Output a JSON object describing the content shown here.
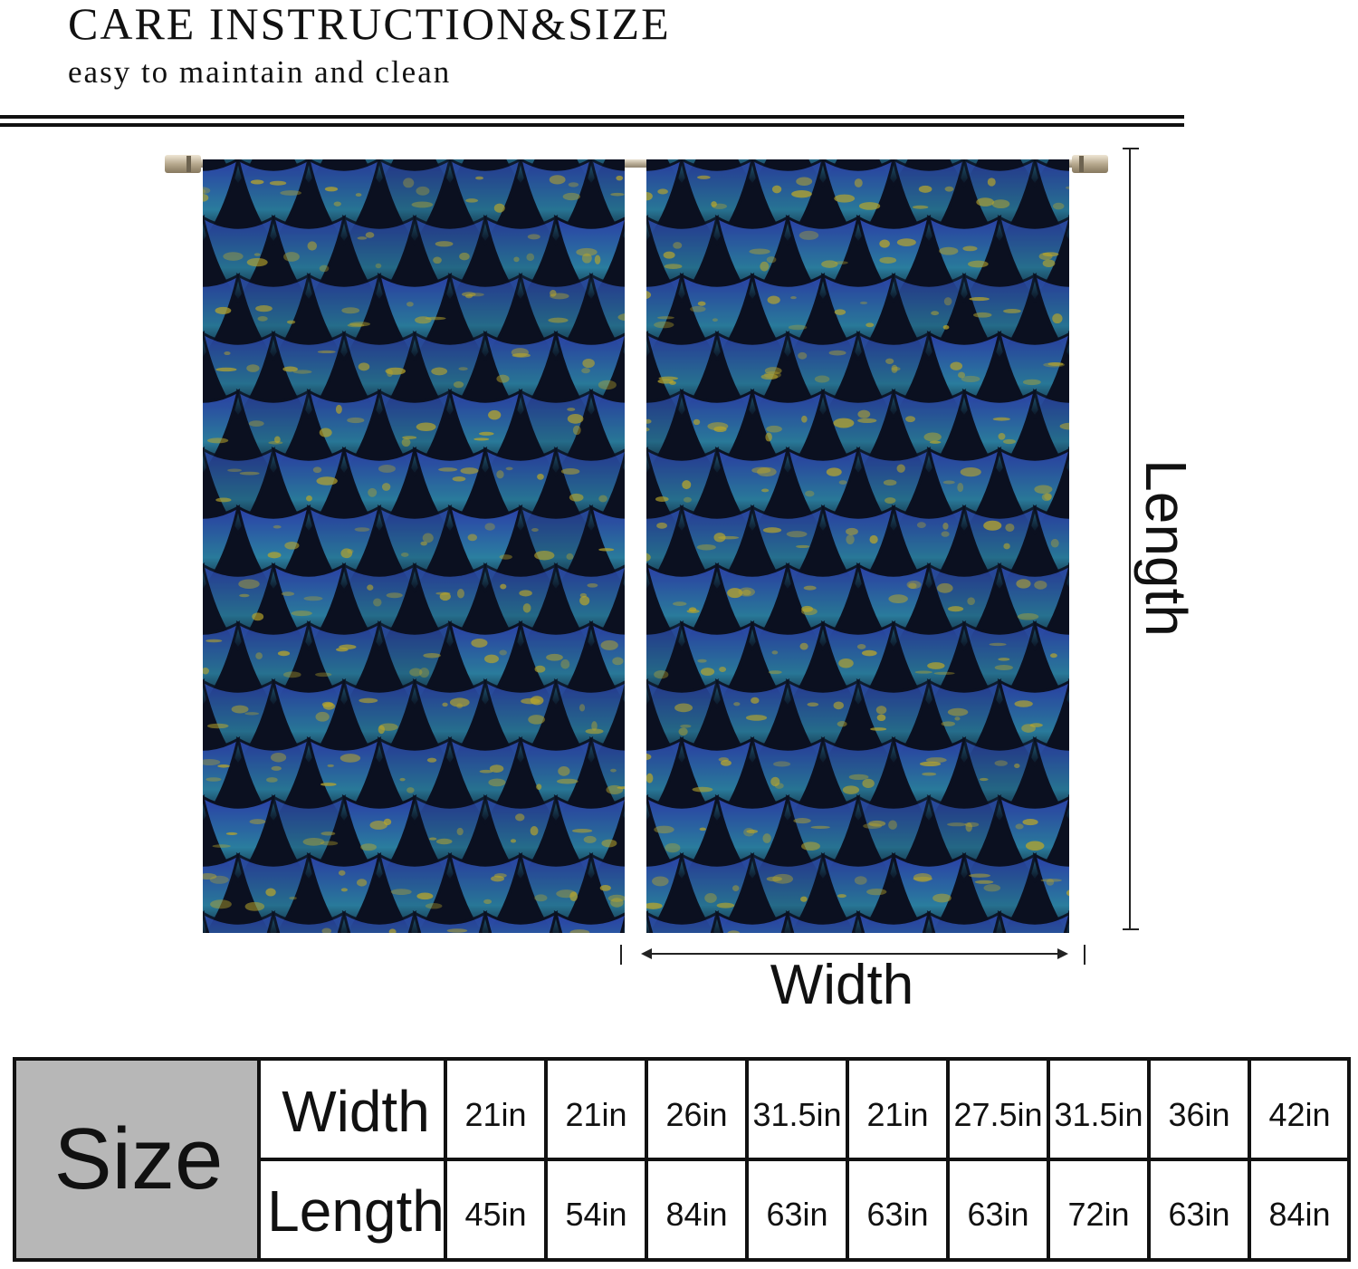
{
  "header": {
    "title": "CARE INSTRUCTION&SIZE",
    "subtitle": "easy to maintain and clean"
  },
  "dimensions": {
    "length_label": "Length",
    "width_label": "Width"
  },
  "size_table": {
    "header": "Size",
    "width_label": "Width",
    "length_label": "Length",
    "widths": [
      "21in",
      "21in",
      "26in",
      "31.5in",
      "21in",
      "27.5in",
      "31.5in",
      "36in",
      "42in"
    ],
    "lengths": [
      "45in",
      "54in",
      "84in",
      "63in",
      "63in",
      "63in",
      "72in",
      "63in",
      "84in"
    ]
  },
  "colors": {
    "scale_dark": "#0b1020",
    "scale_blue": "#2b3fa8",
    "scale_teal": "#2b7fa0",
    "scale_gold": "#b9a62a",
    "table_header_bg": "#b7b7b7"
  }
}
